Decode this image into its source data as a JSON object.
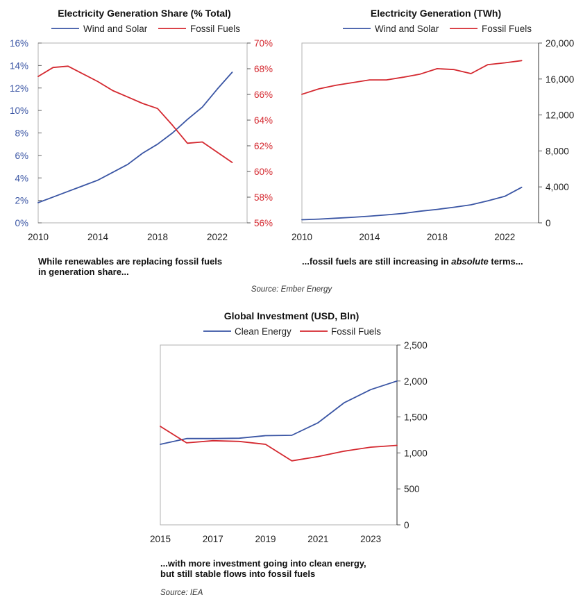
{
  "colors": {
    "blue": "#3a55a4",
    "red": "#d4282f",
    "axis": "#b0b0b0"
  },
  "chart_data": [
    {
      "id": "share",
      "type": "line",
      "title": "Electricity Generation Share (% Total)",
      "caption": [
        "While renewables are replacing fossil fuels",
        "in generation share..."
      ],
      "x_ticks": [
        "2010",
        "2014",
        "2018",
        "2022"
      ],
      "xlim": [
        2010,
        2024
      ],
      "y_left": {
        "ticks": [
          "0%",
          "2%",
          "4%",
          "6%",
          "8%",
          "10%",
          "12%",
          "14%",
          "16%"
        ],
        "lim": [
          0,
          16
        ]
      },
      "y_right": {
        "ticks": [
          "56%",
          "58%",
          "60%",
          "62%",
          "64%",
          "66%",
          "68%",
          "70%"
        ],
        "lim": [
          56,
          70
        ]
      },
      "x": [
        2010,
        2011,
        2012,
        2013,
        2014,
        2015,
        2016,
        2017,
        2018,
        2019,
        2020,
        2021,
        2022,
        2023
      ],
      "series": [
        {
          "name": "Wind and Solar",
          "color": "#3a55a4",
          "axis": "left",
          "values": [
            1.8,
            2.3,
            2.8,
            3.3,
            3.8,
            4.5,
            5.2,
            6.2,
            7.0,
            8.0,
            9.2,
            10.3,
            11.9,
            13.4
          ]
        },
        {
          "name": "Fossil Fuels",
          "color": "#d4282f",
          "axis": "right",
          "values": [
            67.4,
            68.1,
            68.2,
            67.6,
            67.0,
            66.3,
            65.8,
            65.3,
            64.9,
            63.6,
            62.2,
            62.3,
            61.5,
            60.7
          ]
        }
      ]
    },
    {
      "id": "generation",
      "type": "line",
      "title": "Electricity Generation (TWh)",
      "caption": [
        "...fossil fuels are still increasing in ",
        "absolute",
        " terms..."
      ],
      "x_ticks": [
        "2010",
        "2014",
        "2018",
        "2022"
      ],
      "xlim": [
        2010,
        2024
      ],
      "y_right": {
        "ticks": [
          "0",
          "4,000",
          "8,000",
          "12,000",
          "16,000",
          "20,000"
        ],
        "lim": [
          0,
          20000
        ]
      },
      "x": [
        2010,
        2011,
        2012,
        2013,
        2014,
        2015,
        2016,
        2017,
        2018,
        2019,
        2020,
        2021,
        2022,
        2023
      ],
      "series": [
        {
          "name": "Wind and Solar",
          "color": "#3a55a4",
          "axis": "right",
          "values": [
            350,
            420,
            520,
            620,
            740,
            890,
            1050,
            1300,
            1500,
            1740,
            2010,
            2450,
            2950,
            3950
          ]
        },
        {
          "name": "Fossil Fuels",
          "color": "#d4282f",
          "axis": "right",
          "values": [
            14300,
            14900,
            15300,
            15600,
            15900,
            15900,
            16200,
            16550,
            17150,
            17050,
            16600,
            17600,
            17800,
            18050
          ]
        }
      ]
    },
    {
      "id": "investment",
      "type": "line",
      "title": "Global Investment (USD, Bln)",
      "caption": [
        "...with more investment going into clean energy,",
        "but still stable flows into fossil fuels"
      ],
      "x_ticks": [
        "2015",
        "2017",
        "2019",
        "2021",
        "2023"
      ],
      "xlim": [
        2015,
        2024
      ],
      "y_right": {
        "ticks": [
          "0",
          "500",
          "1,000",
          "1,500",
          "2,000",
          "2,500"
        ],
        "lim": [
          0,
          2500
        ]
      },
      "x": [
        2015,
        2016,
        2017,
        2018,
        2019,
        2020,
        2021,
        2022,
        2023,
        2024
      ],
      "series": [
        {
          "name": "Clean Energy",
          "color": "#3a55a4",
          "axis": "right",
          "values": [
            1120,
            1200,
            1200,
            1205,
            1240,
            1245,
            1420,
            1700,
            1880,
            2000
          ]
        },
        {
          "name": "Fossil Fuels",
          "color": "#d4282f",
          "axis": "right",
          "values": [
            1370,
            1140,
            1170,
            1160,
            1120,
            890,
            950,
            1025,
            1080,
            1105
          ]
        }
      ]
    }
  ],
  "sources": {
    "top": "Source: Ember Energy",
    "bottom": "Source: IEA"
  }
}
